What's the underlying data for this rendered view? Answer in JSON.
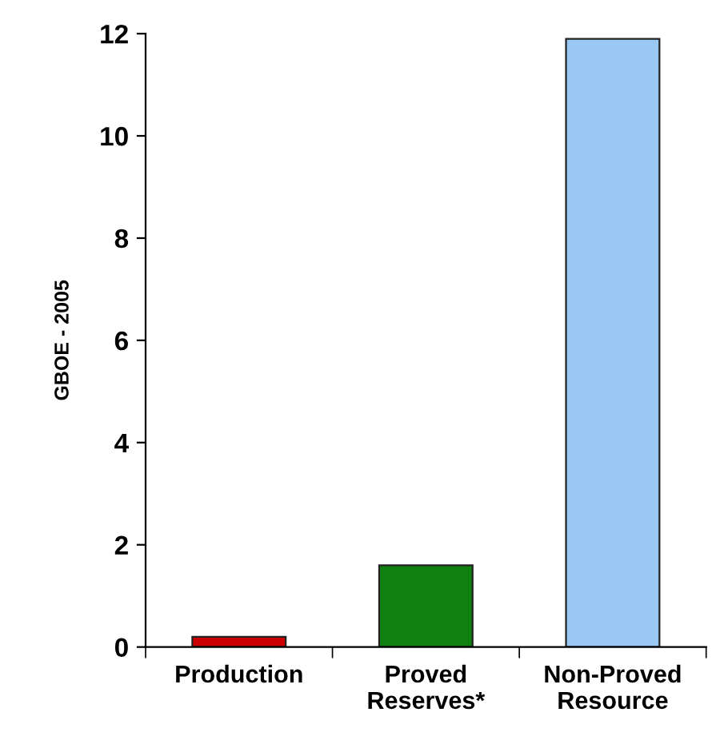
{
  "chart_data": {
    "type": "bar",
    "ylabel": "GBOE - 2005",
    "categories": [
      "Production",
      "Proved\nReserves*",
      "Non-Proved\nResource"
    ],
    "values": [
      0.2,
      1.6,
      11.9
    ],
    "colors": [
      "#cc0000",
      "#108010",
      "#99c8f4"
    ],
    "ylim": [
      0,
      12
    ],
    "yticks": [
      0,
      2,
      4,
      6,
      8,
      10,
      12
    ],
    "grid": false
  }
}
